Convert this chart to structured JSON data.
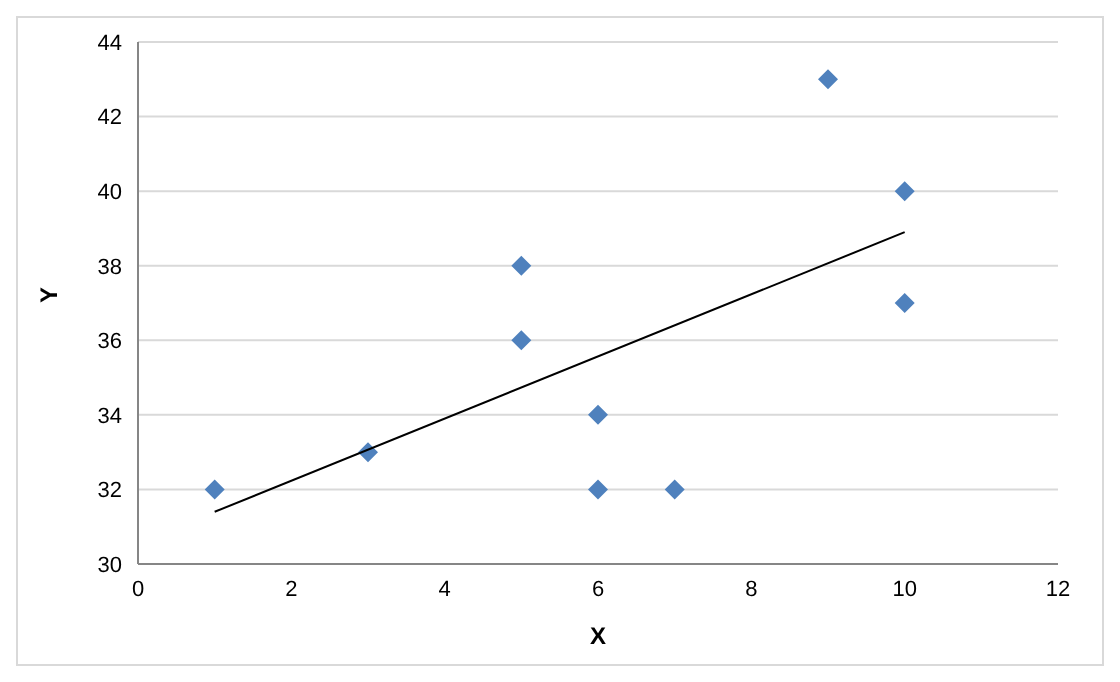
{
  "chart_data": {
    "type": "scatter",
    "xlabel": "X",
    "ylabel": "Y",
    "xlim": [
      0,
      12
    ],
    "xticks": [
      0,
      2,
      4,
      6,
      8,
      10,
      12
    ],
    "ylim": [
      30,
      44
    ],
    "yticks": [
      30,
      32,
      34,
      36,
      38,
      40,
      42,
      44
    ],
    "grid": "y",
    "legend": false,
    "series": [
      {
        "type": "scatter",
        "color": "#4f81bd",
        "marker": "diamond",
        "x": [
          1,
          3,
          5,
          5,
          6,
          6,
          7,
          9,
          10,
          10
        ],
        "values": [
          32,
          33,
          38,
          36,
          34,
          32,
          32,
          43,
          40,
          37
        ]
      },
      {
        "type": "line",
        "color": "#000000",
        "marker": "none",
        "x": [
          1,
          10
        ],
        "values": [
          31.4,
          38.9
        ]
      }
    ]
  }
}
